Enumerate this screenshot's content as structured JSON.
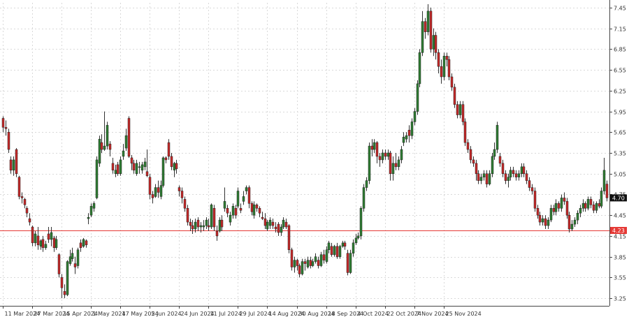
{
  "chart_data": {
    "type": "candlestick",
    "y_axis": {
      "position": "right",
      "ylim": [
        3.14,
        7.52
      ],
      "ticks": [
        3.25,
        3.55,
        3.85,
        4.15,
        4.45,
        4.75,
        5.05,
        5.35,
        5.65,
        5.95,
        6.25,
        6.55,
        6.85,
        7.15,
        7.45
      ],
      "tick_labels": [
        "3.25",
        "3.55",
        "3.85",
        "4.15",
        "4.45",
        "4.75",
        "5.05",
        "5.35",
        "5.65",
        "5.95",
        "6.25",
        "6.55",
        "6.85",
        "7.15",
        "7.45"
      ]
    },
    "x_axis": {
      "tick_labels": [
        "11 Mar 2024",
        "27 Mar 2024",
        "15 Apr 2024",
        "1 May 2024",
        "17 May 2024",
        "5 Jun 2024",
        "24 Jun 2024",
        "11 Jul 2024",
        "29 Jul 2024",
        "14 Aug 2024",
        "30 Aug 2024",
        "18 Sep 2024",
        "4 Oct 2024",
        "22 Oct 2024",
        "7 Nov 2024",
        "25 Nov 2024"
      ],
      "tick_index": [
        0,
        11,
        22,
        33,
        44,
        55,
        66,
        77,
        88,
        99,
        110,
        121,
        132,
        143,
        154,
        165
      ]
    },
    "grid": true,
    "colors": {
      "up": "#2e7d32",
      "down": "#c62828",
      "wick": "#333333"
    },
    "horizontal_line": {
      "value": 4.23,
      "label": "4.23",
      "color": "#e53935"
    },
    "last_price": {
      "value": 4.7,
      "label": "4.70",
      "color": "#111111"
    },
    "candles": [
      [
        5.85,
        5.72,
        5.88,
        5.65
      ],
      [
        5.72,
        5.7,
        5.82,
        5.6
      ],
      [
        5.65,
        5.4,
        5.7,
        5.35
      ],
      [
        5.25,
        5.1,
        5.3,
        5.05
      ],
      [
        5.1,
        5.25,
        5.3,
        5.02
      ],
      [
        5.4,
        5.05,
        5.42,
        5.0
      ],
      [
        5.0,
        4.72,
        5.02,
        4.68
      ],
      [
        4.72,
        4.7,
        4.78,
        4.62
      ],
      [
        4.68,
        4.6,
        4.7,
        4.55
      ],
      [
        4.55,
        4.48,
        4.58,
        4.42
      ],
      [
        4.4,
        4.35,
        4.48,
        4.3
      ],
      [
        4.28,
        4.05,
        4.3,
        4.0
      ],
      [
        4.05,
        4.18,
        4.22,
        4.0
      ],
      [
        4.15,
        4.02,
        4.28,
        3.95
      ],
      [
        4.0,
        4.08,
        4.1,
        3.95
      ],
      [
        4.1,
        3.98,
        4.15,
        3.92
      ],
      [
        3.98,
        4.03,
        4.08,
        3.95
      ],
      [
        4.18,
        4.1,
        4.28,
        4.05
      ],
      [
        4.1,
        4.2,
        4.28,
        4.0
      ],
      [
        4.12,
        3.98,
        4.15,
        3.92
      ],
      [
        3.98,
        4.1,
        4.15,
        3.95
      ],
      [
        3.88,
        3.6,
        3.9,
        3.55
      ],
      [
        3.55,
        3.4,
        3.6,
        3.25
      ],
      [
        3.35,
        3.3,
        3.45,
        3.25
      ],
      [
        3.3,
        3.78,
        3.8,
        3.28
      ],
      [
        3.75,
        3.85,
        3.95,
        3.72
      ],
      [
        3.82,
        3.9,
        3.98,
        3.78
      ],
      [
        3.75,
        3.7,
        3.85,
        3.6
      ],
      [
        3.72,
        3.95,
        3.98,
        3.68
      ],
      [
        4.05,
        3.98,
        4.1,
        3.92
      ],
      [
        4.0,
        4.1,
        4.12,
        3.98
      ],
      [
        4.08,
        4.02,
        4.1,
        3.98
      ],
      [
        4.4,
        4.42,
        4.48,
        4.32
      ],
      [
        4.45,
        4.58,
        4.62,
        4.42
      ],
      [
        4.55,
        4.62,
        4.65,
        4.5
      ],
      [
        4.7,
        5.25,
        5.3,
        4.68
      ],
      [
        5.2,
        5.55,
        5.6,
        5.15
      ],
      [
        5.5,
        5.4,
        5.62,
        5.35
      ],
      [
        5.4,
        5.45,
        5.95,
        5.38
      ],
      [
        5.45,
        5.75,
        5.8,
        5.4
      ],
      [
        5.48,
        5.4,
        5.52,
        5.3
      ],
      [
        5.2,
        5.1,
        5.28,
        5.05
      ],
      [
        5.05,
        5.1,
        5.18,
        5.0
      ],
      [
        5.18,
        5.05,
        5.22,
        5.02
      ],
      [
        5.05,
        5.25,
        5.3,
        5.02
      ],
      [
        5.3,
        5.38,
        5.48,
        5.25
      ],
      [
        5.42,
        5.6,
        5.7,
        5.38
      ],
      [
        5.85,
        5.3,
        5.88,
        5.28
      ],
      [
        5.28,
        5.2,
        5.32,
        5.1
      ],
      [
        5.2,
        5.1,
        5.25,
        5.05
      ],
      [
        5.05,
        5.2,
        5.25,
        5.02
      ],
      [
        5.15,
        5.15,
        5.22,
        5.05
      ],
      [
        5.1,
        5.18,
        5.22,
        5.05
      ],
      [
        5.15,
        5.22,
        5.28,
        5.1
      ],
      [
        5.08,
        5.02,
        5.4,
        5.0
      ],
      [
        5.0,
        4.75,
        5.05,
        4.68
      ],
      [
        4.75,
        4.7,
        4.8,
        4.62
      ],
      [
        4.72,
        4.85,
        4.9,
        4.7
      ],
      [
        4.85,
        4.78,
        4.95,
        4.7
      ],
      [
        4.72,
        4.88,
        4.95,
        4.68
      ],
      [
        4.88,
        5.28,
        5.3,
        4.85
      ],
      [
        5.28,
        5.25,
        5.3,
        5.2
      ],
      [
        5.5,
        5.3,
        5.55,
        5.25
      ],
      [
        5.3,
        5.15,
        5.35,
        5.1
      ],
      [
        5.1,
        5.2,
        5.22,
        5.0
      ],
      [
        5.2,
        5.12,
        5.25,
        5.05
      ],
      [
        4.85,
        4.8,
        4.88,
        4.72
      ],
      [
        4.8,
        4.7,
        4.85,
        4.62
      ],
      [
        4.68,
        4.55,
        4.72,
        4.5
      ],
      [
        4.55,
        4.35,
        4.6,
        4.3
      ],
      [
        4.35,
        4.3,
        4.4,
        4.22
      ],
      [
        4.3,
        4.25,
        4.38,
        4.18
      ],
      [
        4.25,
        4.35,
        4.4,
        4.2
      ],
      [
        4.38,
        4.28,
        4.42,
        4.22
      ],
      [
        4.28,
        4.3,
        4.35,
        4.2
      ],
      [
        4.28,
        4.3,
        4.38,
        4.22
      ],
      [
        4.3,
        4.38,
        4.42,
        4.25
      ],
      [
        4.3,
        4.28,
        4.4,
        4.22
      ],
      [
        4.28,
        4.6,
        4.62,
        4.25
      ],
      [
        4.55,
        4.28,
        4.6,
        4.22
      ],
      [
        4.22,
        4.15,
        4.3,
        4.08
      ],
      [
        4.22,
        4.38,
        4.42,
        4.2
      ],
      [
        4.38,
        4.28,
        4.45,
        4.22
      ],
      [
        4.55,
        4.65,
        4.85,
        4.5
      ],
      [
        4.55,
        4.48,
        4.6,
        4.42
      ],
      [
        4.35,
        4.45,
        4.5,
        4.3
      ],
      [
        4.45,
        4.58,
        4.62,
        4.4
      ],
      [
        4.55,
        4.45,
        4.6,
        4.4
      ],
      [
        4.58,
        4.8,
        4.85,
        4.55
      ],
      [
        4.55,
        4.52,
        4.62,
        4.48
      ],
      [
        4.65,
        4.72,
        4.8,
        4.6
      ],
      [
        4.8,
        4.85,
        4.88,
        4.75
      ],
      [
        4.85,
        4.62,
        4.88,
        4.55
      ],
      [
        4.62,
        4.5,
        4.65,
        4.45
      ],
      [
        4.45,
        4.6,
        4.65,
        4.4
      ],
      [
        4.6,
        4.55,
        4.62,
        4.5
      ],
      [
        4.55,
        4.48,
        4.58,
        4.42
      ],
      [
        4.42,
        4.4,
        4.5,
        4.38
      ],
      [
        4.4,
        4.3,
        4.48,
        4.25
      ],
      [
        4.25,
        4.35,
        4.38,
        4.22
      ],
      [
        4.3,
        4.38,
        4.42,
        4.25
      ],
      [
        4.35,
        4.3,
        4.4,
        4.25
      ],
      [
        4.28,
        4.25,
        4.35,
        4.2
      ],
      [
        4.32,
        4.2,
        4.35,
        4.15
      ],
      [
        4.2,
        4.28,
        4.32,
        4.15
      ],
      [
        4.28,
        4.38,
        4.42,
        4.25
      ],
      [
        4.35,
        4.28,
        4.4,
        4.25
      ],
      [
        4.3,
        3.95,
        4.32,
        3.9
      ],
      [
        3.95,
        3.7,
        3.98,
        3.65
      ],
      [
        3.7,
        3.8,
        3.85,
        3.62
      ],
      [
        3.8,
        3.72,
        3.82,
        3.65
      ],
      [
        3.72,
        3.6,
        3.75,
        3.55
      ],
      [
        3.6,
        3.78,
        3.82,
        3.58
      ],
      [
        3.78,
        3.75,
        3.82,
        3.65
      ],
      [
        3.7,
        3.8,
        3.85,
        3.68
      ],
      [
        3.8,
        3.72,
        3.85,
        3.68
      ],
      [
        3.72,
        3.78,
        3.82,
        3.7
      ],
      [
        3.78,
        3.85,
        3.9,
        3.75
      ],
      [
        3.8,
        3.72,
        3.85,
        3.68
      ],
      [
        3.72,
        3.88,
        3.92,
        3.7
      ],
      [
        3.88,
        3.8,
        3.95,
        3.75
      ],
      [
        3.78,
        3.95,
        4.0,
        3.75
      ],
      [
        3.95,
        4.05,
        4.08,
        3.9
      ],
      [
        4.0,
        3.88,
        4.05,
        3.85
      ],
      [
        3.88,
        4.0,
        4.02,
        3.85
      ],
      [
        4.0,
        3.85,
        4.05,
        3.82
      ],
      [
        3.85,
        4.0,
        4.02,
        3.82
      ],
      [
        4.0,
        4.05,
        4.08,
        3.98
      ],
      [
        4.05,
        4.0,
        4.08,
        3.95
      ],
      [
        3.9,
        3.62,
        3.95,
        3.58
      ],
      [
        3.62,
        3.9,
        3.95,
        3.6
      ],
      [
        3.9,
        4.05,
        4.1,
        3.85
      ],
      [
        4.05,
        4.12,
        4.18,
        4.02
      ],
      [
        4.12,
        4.15,
        4.2,
        4.1
      ],
      [
        4.15,
        4.55,
        4.58,
        4.1
      ],
      [
        4.55,
        4.85,
        4.9,
        4.5
      ],
      [
        4.85,
        4.95,
        5.0,
        4.8
      ],
      [
        4.95,
        5.45,
        5.5,
        4.9
      ],
      [
        5.45,
        5.4,
        5.55,
        5.3
      ],
      [
        5.4,
        5.5,
        5.55,
        5.35
      ],
      [
        5.5,
        5.3,
        5.52,
        5.2
      ],
      [
        5.3,
        5.25,
        5.35,
        5.15
      ],
      [
        5.25,
        5.35,
        5.4,
        5.2
      ],
      [
        5.35,
        5.3,
        5.4,
        5.25
      ],
      [
        5.3,
        5.35,
        5.4,
        5.25
      ],
      [
        5.35,
        5.05,
        5.38,
        4.95
      ],
      [
        5.05,
        5.2,
        5.3,
        4.95
      ],
      [
        5.2,
        5.15,
        5.35,
        5.1
      ],
      [
        5.15,
        5.25,
        5.3,
        5.1
      ],
      [
        5.25,
        5.4,
        5.45,
        5.2
      ],
      [
        5.5,
        5.58,
        5.65,
        5.45
      ],
      [
        5.55,
        5.6,
        5.65,
        5.5
      ],
      [
        5.68,
        5.6,
        5.75,
        5.5
      ],
      [
        5.6,
        5.8,
        5.85,
        5.55
      ],
      [
        5.8,
        5.95,
        6.0,
        5.75
      ],
      [
        5.95,
        6.35,
        6.4,
        5.9
      ],
      [
        6.35,
        6.8,
        6.85,
        6.3
      ],
      [
        6.8,
        7.25,
        7.4,
        6.75
      ],
      [
        7.25,
        7.1,
        7.3,
        7.0
      ],
      [
        7.1,
        7.4,
        7.5,
        7.05
      ],
      [
        7.4,
        6.85,
        7.45,
        6.8
      ],
      [
        6.85,
        7.05,
        7.15,
        6.75
      ],
      [
        7.05,
        6.8,
        7.1,
        6.7
      ],
      [
        6.8,
        6.6,
        6.85,
        6.5
      ],
      [
        6.6,
        6.45,
        6.7,
        6.35
      ],
      [
        6.45,
        6.75,
        6.8,
        6.4
      ],
      [
        6.75,
        6.7,
        6.8,
        6.6
      ],
      [
        6.7,
        6.45,
        6.75,
        6.4
      ],
      [
        6.45,
        6.3,
        6.5,
        6.25
      ],
      [
        6.3,
        6.05,
        6.35,
        6.0
      ],
      [
        6.05,
        5.9,
        6.1,
        5.85
      ],
      [
        5.9,
        6.05,
        6.1,
        5.85
      ],
      [
        6.05,
        5.8,
        6.1,
        5.75
      ],
      [
        5.8,
        5.5,
        5.85,
        5.45
      ],
      [
        5.5,
        5.4,
        5.55,
        5.35
      ],
      [
        5.4,
        5.25,
        5.45,
        5.2
      ],
      [
        5.25,
        5.2,
        5.3,
        5.15
      ],
      [
        5.2,
        5.05,
        5.25,
        4.95
      ],
      [
        5.05,
        4.95,
        5.1,
        4.9
      ],
      [
        4.95,
        5.0,
        5.05,
        4.9
      ],
      [
        5.0,
        5.05,
        5.1,
        4.95
      ],
      [
        5.05,
        4.9,
        5.1,
        4.85
      ],
      [
        4.9,
        5.05,
        5.1,
        4.88
      ],
      [
        5.05,
        5.3,
        5.35,
        5.0
      ],
      [
        5.3,
        5.4,
        5.5,
        5.25
      ],
      [
        5.4,
        5.75,
        5.8,
        5.35
      ],
      [
        5.3,
        5.2,
        5.35,
        5.15
      ],
      [
        5.2,
        5.05,
        5.25,
        5.0
      ],
      [
        5.05,
        4.95,
        5.1,
        4.9
      ],
      [
        4.95,
        5.0,
        5.05,
        4.85
      ],
      [
        5.0,
        5.1,
        5.15,
        4.95
      ],
      [
        5.1,
        5.05,
        5.15,
        5.0
      ],
      [
        5.05,
        5.0,
        5.1,
        4.95
      ],
      [
        5.0,
        5.05,
        5.1,
        4.95
      ],
      [
        5.05,
        5.15,
        5.2,
        5.0
      ],
      [
        5.15,
        5.05,
        5.2,
        5.0
      ],
      [
        5.05,
        4.95,
        5.1,
        4.9
      ],
      [
        4.95,
        4.85,
        5.0,
        4.8
      ],
      [
        4.85,
        4.8,
        4.9,
        4.75
      ],
      [
        4.8,
        4.55,
        4.85,
        4.5
      ],
      [
        4.55,
        4.45,
        4.6,
        4.4
      ],
      [
        4.45,
        4.35,
        4.5,
        4.3
      ],
      [
        4.35,
        4.4,
        4.45,
        4.3
      ],
      [
        4.4,
        4.3,
        4.45,
        4.25
      ],
      [
        4.3,
        4.38,
        4.42,
        4.25
      ],
      [
        4.38,
        4.55,
        4.6,
        4.35
      ],
      [
        4.55,
        4.5,
        4.6,
        4.45
      ],
      [
        4.5,
        4.62,
        4.68,
        4.45
      ],
      [
        4.62,
        4.55,
        4.65,
        4.5
      ],
      [
        4.55,
        4.7,
        4.75,
        4.5
      ],
      [
        4.7,
        4.65,
        4.78,
        4.6
      ],
      [
        4.65,
        4.45,
        4.7,
        4.4
      ],
      [
        4.45,
        4.25,
        4.5,
        4.2
      ],
      [
        4.25,
        4.32,
        4.38,
        4.22
      ],
      [
        4.32,
        4.38,
        4.42,
        4.28
      ],
      [
        4.38,
        4.48,
        4.52,
        4.32
      ],
      [
        4.48,
        4.55,
        4.6,
        4.42
      ],
      [
        4.55,
        4.62,
        4.68,
        4.5
      ],
      [
        4.62,
        4.55,
        4.65,
        4.5
      ],
      [
        4.55,
        4.68,
        4.72,
        4.52
      ],
      [
        4.68,
        4.6,
        4.72,
        4.55
      ],
      [
        4.6,
        4.52,
        4.65,
        4.48
      ],
      [
        4.52,
        4.62,
        4.65,
        4.48
      ],
      [
        4.62,
        4.58,
        4.68,
        4.55
      ],
      [
        4.58,
        4.8,
        4.85,
        4.55
      ],
      [
        4.8,
        5.1,
        5.28,
        4.75
      ],
      [
        4.9,
        4.7,
        4.95,
        4.65
      ]
    ]
  }
}
